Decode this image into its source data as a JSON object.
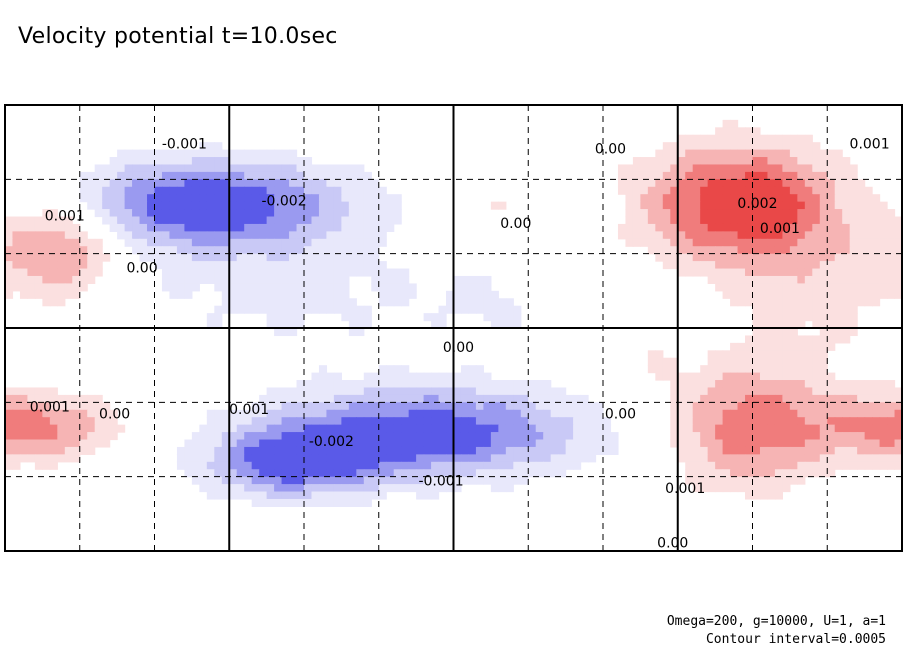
{
  "title": "Velocity potential t=10.0sec",
  "footer": {
    "params": "Omega=200, g=10000, U=1, a=1",
    "interval": "Contour interval=0.0005"
  },
  "colors": {
    "positive_light": "#fbe0e0",
    "positive_mid": "#f6b4b4",
    "positive_strong": "#f07c7c",
    "positive_peak": "#e94848",
    "negative_light": "#e8e8fb",
    "negative_mid": "#c9c9f6",
    "negative_strong": "#9a9af0",
    "negative_peak": "#5a5ae8"
  },
  "chart_data": {
    "type": "heatmap",
    "title": "Velocity potential t=10.0sec",
    "field": "velocity potential",
    "contour_interval": 0.0005,
    "xlim": [
      0,
      360
    ],
    "ylim": [
      -90,
      90
    ],
    "major_grid_x": [
      90,
      180,
      270
    ],
    "major_grid_y": [
      0
    ],
    "minor_grid_x": [
      30,
      60,
      120,
      150,
      210,
      240,
      300,
      330
    ],
    "minor_grid_y": [
      -60,
      -30,
      30,
      60
    ],
    "grid": true,
    "anomalies": [
      {
        "lon": 80,
        "lat": 50,
        "peak": -0.0025,
        "sx": 40,
        "sy": 13
      },
      {
        "lon": 170,
        "lat": -42,
        "peak": -0.0024,
        "sx": 45,
        "sy": 13
      },
      {
        "lon": 115,
        "lat": -55,
        "peak": -0.002,
        "sx": 25,
        "sy": 10
      },
      {
        "lon": 115,
        "lat": 15,
        "peak": -0.0006,
        "sx": 55,
        "sy": 20
      },
      {
        "lon": 200,
        "lat": 10,
        "peak": -0.0004,
        "sx": 20,
        "sy": 12
      },
      {
        "lon": 295,
        "lat": 50,
        "peak": 0.0025,
        "sx": 28,
        "sy": 17
      },
      {
        "lon": 325,
        "lat": 15,
        "peak": 0.0006,
        "sx": 25,
        "sy": 25
      },
      {
        "lon": 298,
        "lat": -40,
        "peak": 0.0018,
        "sx": 22,
        "sy": 18
      },
      {
        "lon": 22,
        "lat": 33,
        "peak": 0.0018,
        "sx": 18,
        "sy": 15
      },
      {
        "lon": 5,
        "lat": -40,
        "peak": 0.0018,
        "sx": 28,
        "sy": 10
      },
      {
        "lon": 190,
        "lat": 50,
        "peak": 0.0006,
        "sx": 14,
        "sy": 8
      },
      {
        "lon": 255,
        "lat": -10,
        "peak": 0.0004,
        "sx": 14,
        "sy": 10
      }
    ],
    "contour_labels": [
      {
        "text": "-0.001",
        "lon": 72,
        "lat": 74
      },
      {
        "text": "-0.002",
        "lon": 112,
        "lat": 51
      },
      {
        "text": "0.00",
        "lon": 243,
        "lat": 72
      },
      {
        "text": "0.001",
        "lon": 347,
        "lat": 74
      },
      {
        "text": "0.002",
        "lon": 302,
        "lat": 50
      },
      {
        "text": "0.001",
        "lon": 311,
        "lat": 40
      },
      {
        "text": "0.001",
        "lon": 24,
        "lat": 45
      },
      {
        "text": "0.00",
        "lon": 205,
        "lat": 42
      },
      {
        "text": "0.00",
        "lon": 55,
        "lat": 24
      },
      {
        "text": "0.00",
        "lon": 182,
        "lat": -8
      },
      {
        "text": "0.001",
        "lon": 18,
        "lat": -32
      },
      {
        "text": "0.00",
        "lon": 44,
        "lat": -35
      },
      {
        "text": "0.001",
        "lon": 98,
        "lat": -33
      },
      {
        "text": "-0.002",
        "lon": 131,
        "lat": -46
      },
      {
        "text": "-0.001",
        "lon": 175,
        "lat": -62
      },
      {
        "text": "0.00",
        "lon": 247,
        "lat": -35
      },
      {
        "text": "0.001",
        "lon": 273,
        "lat": -65
      },
      {
        "text": "0.00",
        "lon": 268,
        "lat": -87
      }
    ]
  }
}
